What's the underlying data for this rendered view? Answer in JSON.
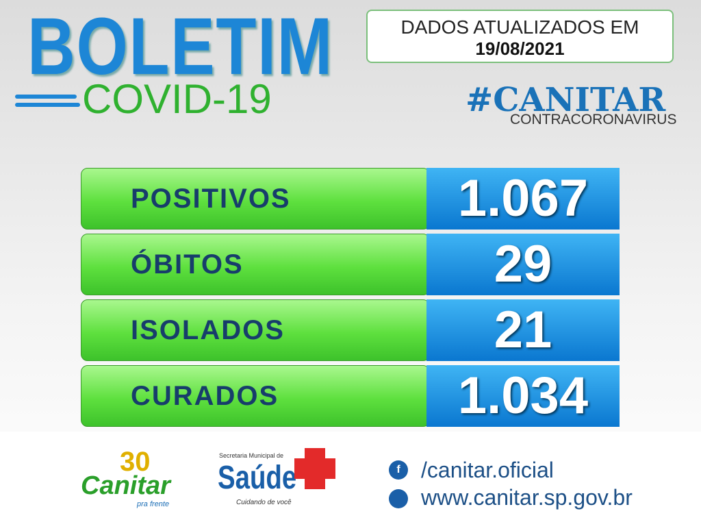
{
  "header": {
    "title": "BOLETIM",
    "subtitle": "COVID-19",
    "update_label": "DADOS ATUALIZADOS EM",
    "update_date": "19/08/2021",
    "hashtag": "#CANITAR",
    "hashtag_sub": "CONTRACORONAVIRUS"
  },
  "rows": [
    {
      "label": "POSITIVOS",
      "value": "1.067"
    },
    {
      "label": "ÓBITOS",
      "value": "29"
    },
    {
      "label": "ISOLADOS",
      "value": "21"
    },
    {
      "label": "CURADOS",
      "value": "1.034"
    }
  ],
  "footer": {
    "logo_number": "30",
    "logo_name": "Canitar",
    "logo_tagline": "pra frente",
    "health_dept": "Secretaria Municipal de",
    "health_name": "Saúde",
    "health_tagline": "Cuidando de você",
    "facebook": "/canitar.oficial",
    "website": "www.canitar.sp.gov.br"
  }
}
